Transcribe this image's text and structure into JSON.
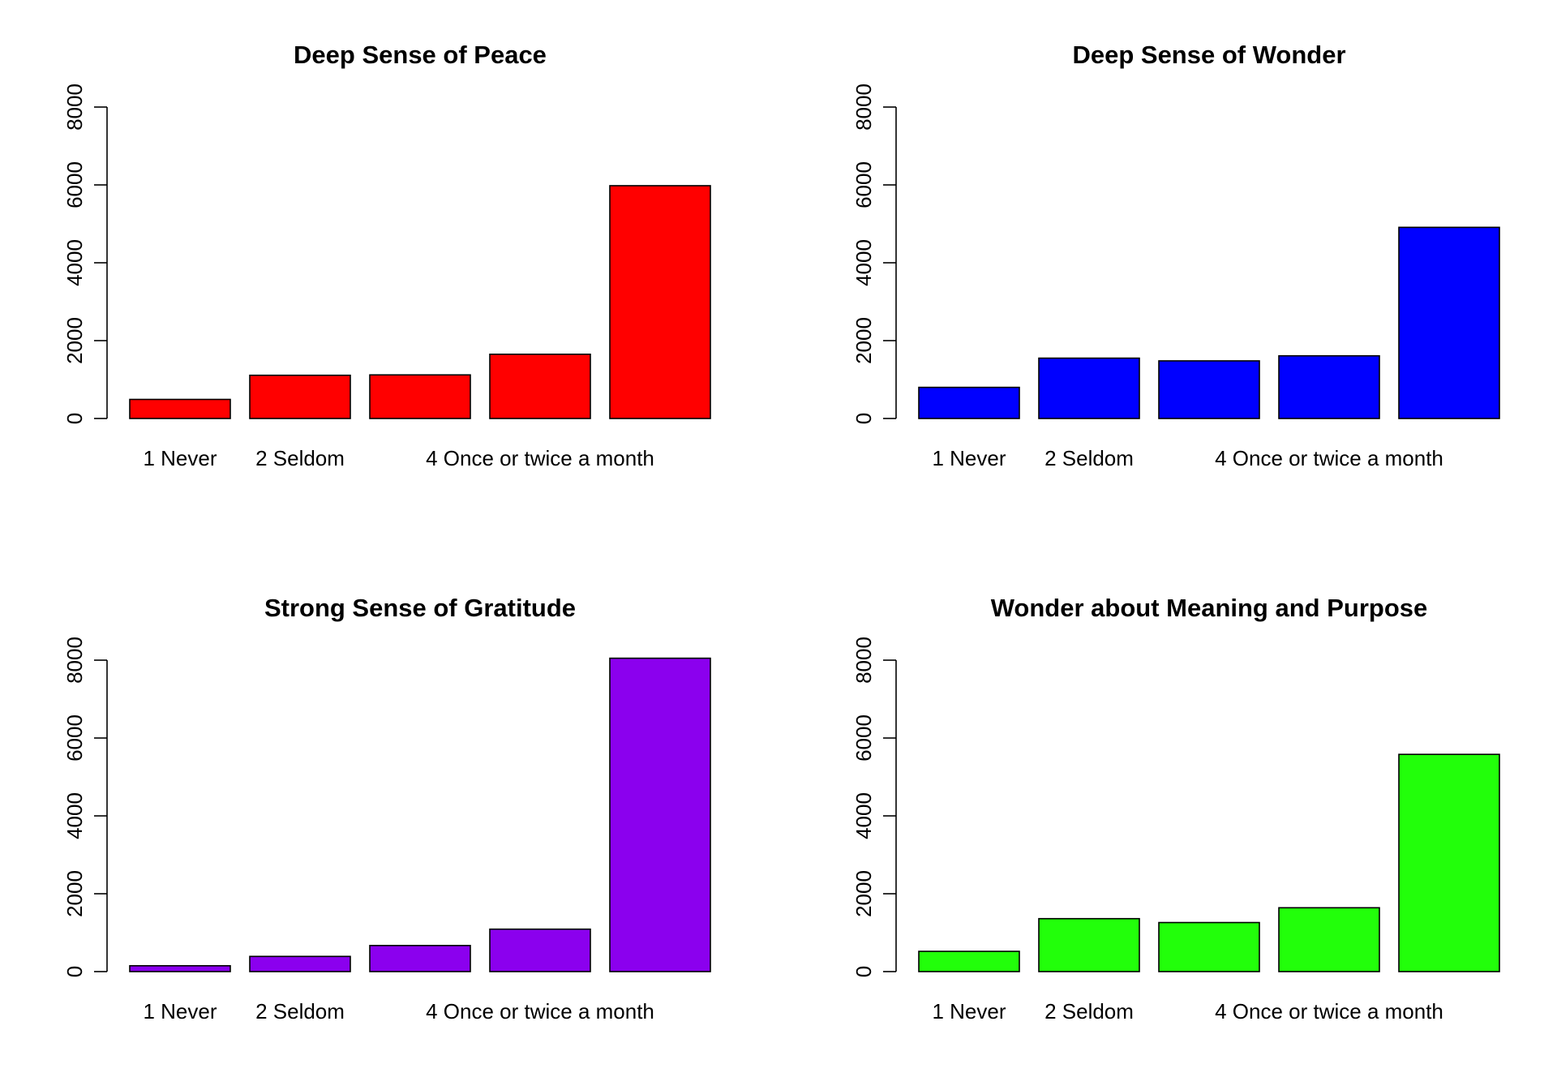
{
  "chart_data": [
    {
      "type": "bar",
      "title": "Deep Sense of Peace",
      "color": "#ff0000",
      "categories": [
        "1 Never",
        "2 Seldom",
        "",
        "4 Once or twice a month",
        ""
      ],
      "values": [
        490,
        1110,
        1120,
        1650,
        5980
      ],
      "ylim": [
        0,
        8000
      ],
      "yticks": [
        0,
        2000,
        4000,
        6000,
        8000
      ],
      "xlabel": "",
      "ylabel": "",
      "grid": false
    },
    {
      "type": "bar",
      "title": "Deep Sense of Wonder",
      "color": "#0000ff",
      "categories": [
        "1 Never",
        "2 Seldom",
        "",
        "4 Once or twice a month",
        ""
      ],
      "values": [
        800,
        1550,
        1480,
        1610,
        4910
      ],
      "ylim": [
        0,
        8000
      ],
      "yticks": [
        0,
        2000,
        4000,
        6000,
        8000
      ],
      "xlabel": "",
      "ylabel": "",
      "grid": false
    },
    {
      "type": "bar",
      "title": "Strong Sense of Gratitude",
      "color": "#8b00ee",
      "categories": [
        "1 Never",
        "2 Seldom",
        "",
        "4 Once or twice a month",
        ""
      ],
      "values": [
        150,
        390,
        670,
        1090,
        8050
      ],
      "ylim": [
        0,
        8000
      ],
      "yticks": [
        0,
        2000,
        4000,
        6000,
        8000
      ],
      "xlabel": "",
      "ylabel": "",
      "grid": false
    },
    {
      "type": "bar",
      "title": "Wonder about Meaning and Purpose",
      "color": "#22ff0a",
      "categories": [
        "1 Never",
        "2 Seldom",
        "",
        "4 Once or twice a month",
        ""
      ],
      "values": [
        520,
        1360,
        1260,
        1640,
        5580
      ],
      "ylim": [
        0,
        8000
      ],
      "yticks": [
        0,
        2000,
        4000,
        6000,
        8000
      ],
      "xlabel": "",
      "ylabel": "",
      "grid": false
    }
  ]
}
